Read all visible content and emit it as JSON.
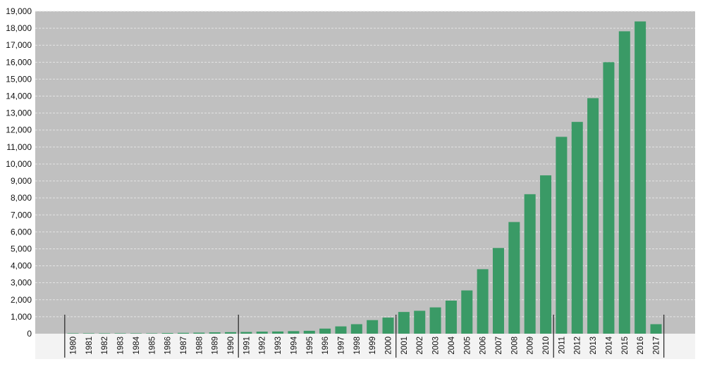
{
  "chart_data": {
    "type": "bar",
    "title": "",
    "xlabel": "",
    "ylabel": "",
    "ylim": [
      0,
      19000
    ],
    "yticks": [
      "0",
      "1,000",
      "2,000",
      "3,000",
      "4,000",
      "5,000",
      "6,000",
      "7,000",
      "8,000",
      "9,000",
      "10,000",
      "11,000",
      "12,000",
      "13,000",
      "14,000",
      "15,000",
      "16,000",
      "17,000",
      "18,000",
      "19,000"
    ],
    "grid": true,
    "legend": "none",
    "categories": [
      "1980",
      "1981",
      "1982",
      "1983",
      "1984",
      "1985",
      "1986",
      "1987",
      "1988",
      "1989",
      "1990",
      "1991",
      "1992",
      "1993",
      "1994",
      "1995",
      "1996",
      "1997",
      "1998",
      "1999",
      "2000",
      "2001",
      "2002",
      "2003",
      "2004",
      "2005",
      "2006",
      "2007",
      "2008",
      "2009",
      "2010",
      "2011",
      "2012",
      "2013",
      "2014",
      "2015",
      "2016",
      "2017"
    ],
    "values": [
      5,
      5,
      5,
      5,
      10,
      20,
      40,
      50,
      60,
      80,
      90,
      100,
      120,
      130,
      150,
      170,
      300,
      430,
      560,
      800,
      950,
      1280,
      1350,
      1550,
      1950,
      2550,
      3800,
      5050,
      6580,
      8220,
      9330,
      11600,
      12480,
      13880,
      16000,
      17820,
      18400,
      560
    ],
    "decade_separators_after": [
      "1980",
      "1990",
      "2000",
      "2010",
      "2017"
    ],
    "colors": {
      "bar": "#3a9a66",
      "plot_background": "#c0c0c0",
      "gridline": "#e4e4e4",
      "axis_text": "#111111",
      "separator": "#222222"
    }
  }
}
